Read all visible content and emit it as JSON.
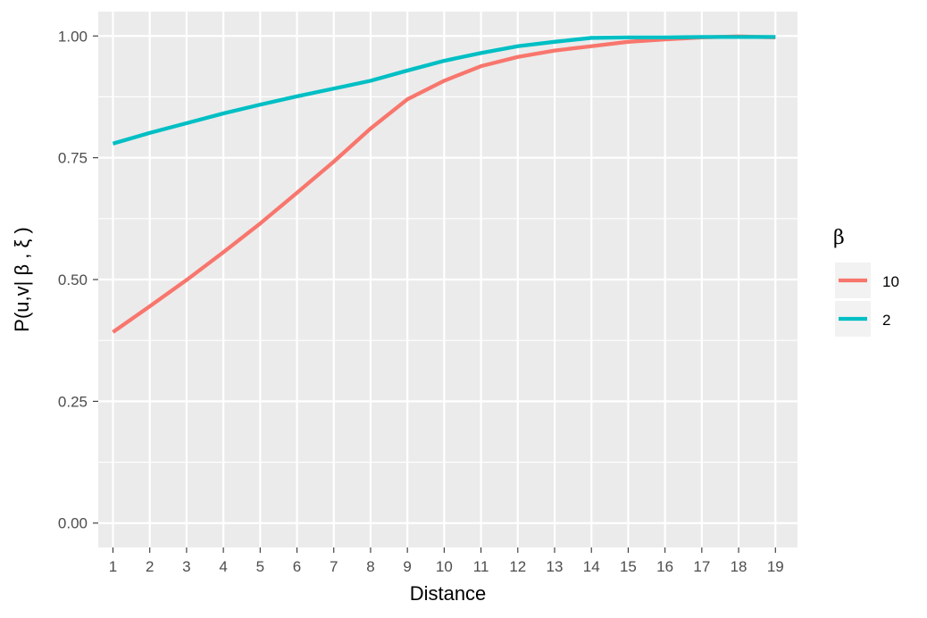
{
  "chart_data": {
    "type": "line",
    "title": "",
    "xlabel": "Distance",
    "ylabel": "P(u,v| β , ξ )",
    "x": [
      1,
      2,
      3,
      4,
      5,
      6,
      7,
      8,
      9,
      10,
      11,
      12,
      13,
      14,
      15,
      16,
      17,
      18,
      19
    ],
    "x_tick_labels": [
      "1",
      "2",
      "3",
      "4",
      "5",
      "6",
      "7",
      "8",
      "9",
      "10",
      "11",
      "12",
      "13",
      "14",
      "15",
      "16",
      "17",
      "18",
      "19"
    ],
    "xlim": [
      0.6,
      19.6
    ],
    "ylim": [
      -0.05,
      1.05
    ],
    "y_ticks": [
      0,
      0.25,
      0.5,
      0.75,
      1.0
    ],
    "y_tick_labels": [
      "0.00",
      "0.25",
      "0.50",
      "0.75",
      "1.00"
    ],
    "grid": true,
    "legend": {
      "title": "β",
      "placement": "right",
      "entries": [
        "10",
        "2"
      ]
    },
    "series": [
      {
        "name": "10",
        "color": "#F8766D",
        "values": [
          0.392,
          0.445,
          0.499,
          0.556,
          0.615,
          0.678,
          0.742,
          0.81,
          0.87,
          0.908,
          0.938,
          0.957,
          0.97,
          0.979,
          0.988,
          0.993,
          0.997,
          0.999,
          0.997
        ]
      },
      {
        "name": "2",
        "color": "#00BFC4",
        "values": [
          0.779,
          0.801,
          0.821,
          0.841,
          0.859,
          0.876,
          0.892,
          0.908,
          0.929,
          0.949,
          0.965,
          0.979,
          0.988,
          0.996,
          0.997,
          0.997,
          0.998,
          0.998,
          0.998
        ]
      }
    ]
  },
  "colors": {
    "panel_background": "#EBEBEB",
    "grid_major": "#FFFFFF",
    "axis_tick": "#333333"
  }
}
